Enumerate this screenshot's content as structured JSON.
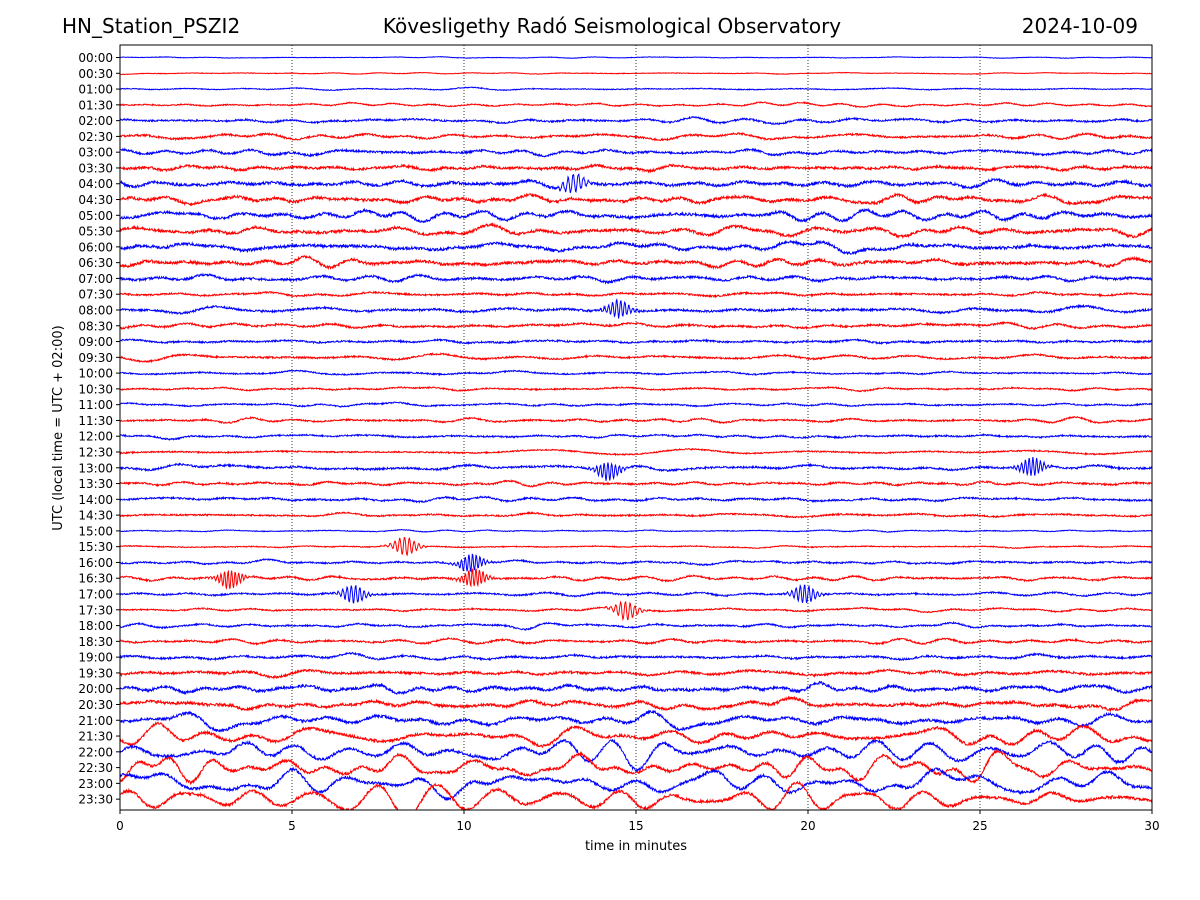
{
  "header": {
    "station": "HN_Station_PSZI2",
    "observatory": "Kövesligethy Radó Seismological Observatory",
    "date": "2024-10-09"
  },
  "chart_data": {
    "type": "line",
    "title": "Kövesligethy Radó Seismological Observatory",
    "xlabel": "time in minutes",
    "ylabel": "UTC (local time = UTC + 02:00)",
    "xlim": [
      0,
      30
    ],
    "x_ticks": [
      "0",
      "5",
      "10",
      "15",
      "20",
      "25",
      "30"
    ],
    "grid": "vertical dotted lines at x = 5, 10, 15, 20, 25",
    "row_labels": [
      "00:00",
      "00:30",
      "01:00",
      "01:30",
      "02:00",
      "02:30",
      "03:00",
      "03:30",
      "04:00",
      "04:30",
      "05:00",
      "05:30",
      "06:00",
      "06:30",
      "07:00",
      "07:30",
      "08:00",
      "08:30",
      "09:00",
      "09:30",
      "10:00",
      "10:30",
      "11:00",
      "11:30",
      "12:00",
      "12:30",
      "13:00",
      "13:30",
      "14:00",
      "14:30",
      "15:00",
      "15:30",
      "16:00",
      "16:30",
      "17:00",
      "17:30",
      "18:00",
      "18:30",
      "19:00",
      "19:30",
      "20:00",
      "20:30",
      "21:00",
      "21:30",
      "22:00",
      "22:30",
      "23:00",
      "23:30"
    ],
    "colors": [
      "#0000ff",
      "#ff0000"
    ],
    "relative_amplitude": [
      0.5,
      0.6,
      0.9,
      1.2,
      1.8,
      2.0,
      2.2,
      2.6,
      3.4,
      3.6,
      4.6,
      4.4,
      4.0,
      3.0,
      2.4,
      1.8,
      2.2,
      2.0,
      1.8,
      1.8,
      1.4,
      1.4,
      1.4,
      1.6,
      1.6,
      1.4,
      2.0,
      1.8,
      1.8,
      1.6,
      0.8,
      1.0,
      1.6,
      1.8,
      1.6,
      1.4,
      1.6,
      1.8,
      2.0,
      2.4,
      3.4,
      4.4,
      5.4,
      6.4,
      8.0,
      9.0,
      10.0,
      11.0
    ],
    "events": [
      {
        "row": "04:00",
        "minute": 13.2
      },
      {
        "row": "08:00",
        "minute": 14.5
      },
      {
        "row": "13:00",
        "minute": 14.2
      },
      {
        "row": "13:00",
        "minute": 26.5
      },
      {
        "row": "15:30",
        "minute": 8.3
      },
      {
        "row": "16:00",
        "minute": 10.2
      },
      {
        "row": "16:30",
        "minute": 10.3
      },
      {
        "row": "16:30",
        "minute": 3.2
      },
      {
        "row": "17:00",
        "minute": 6.8
      },
      {
        "row": "17:00",
        "minute": 19.9
      },
      {
        "row": "17:30",
        "minute": 14.7
      }
    ]
  }
}
